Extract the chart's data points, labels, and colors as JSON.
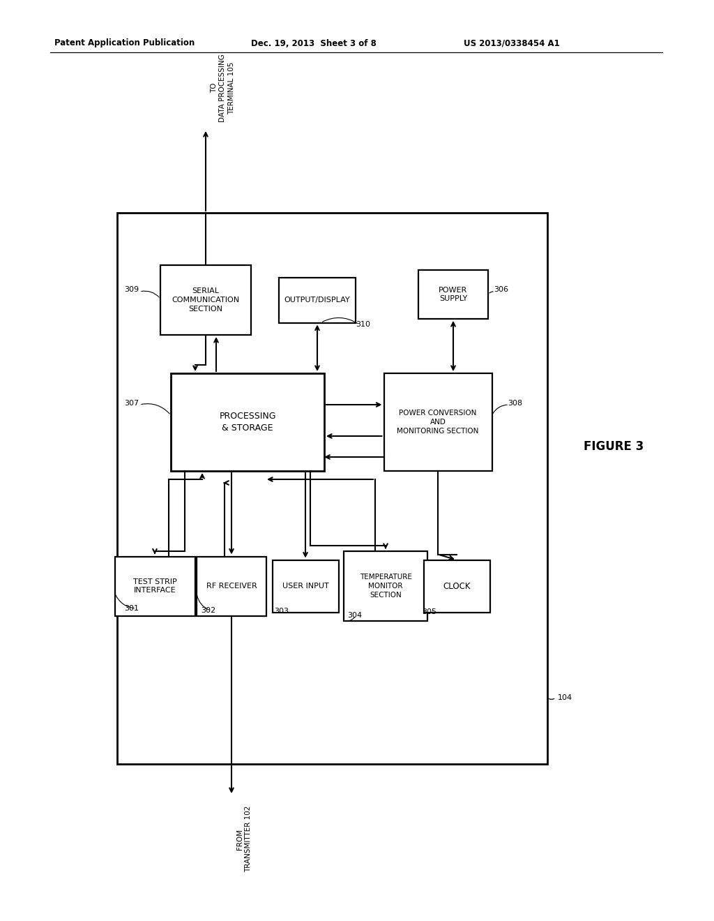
{
  "header_left": "Patent Application Publication",
  "header_mid": "Dec. 19, 2013  Sheet 3 of 8",
  "header_right": "US 2013/0338454 A1",
  "figure_label": "FIGURE 3",
  "bg_color": "#ffffff",
  "outer_label": "104",
  "top_label": "TO\nDATA PROCESSING\nTERMINAL 105",
  "bottom_label": "FROM\nTRANSMITTER 102",
  "boxes": {
    "serial_comm": {
      "label": "SERIAL\nCOMMUNICATION\nSECTION",
      "ref": "309"
    },
    "output_display": {
      "label": "OUTPUT/DISPLAY",
      "ref": "310"
    },
    "power_supply": {
      "label": "POWER\nSUPPLY",
      "ref": "306"
    },
    "processing": {
      "label": "PROCESSING\n& STORAGE",
      "ref": "307"
    },
    "power_conv": {
      "label": "POWER CONVERSION\nAND\nMONITORING SECTION",
      "ref": "308"
    },
    "test_strip": {
      "label": "TEST STRIP\nINTERFACE",
      "ref": "301"
    },
    "rf_receiver": {
      "label": "RF RECEIVER",
      "ref": "302"
    },
    "user_input": {
      "label": "USER INPUT",
      "ref": "303"
    },
    "temp_monitor": {
      "label": "TEMPERATURE\nMONITOR\nSECTION",
      "ref": "304"
    },
    "clock": {
      "label": "CLOCK",
      "ref": "305"
    }
  }
}
